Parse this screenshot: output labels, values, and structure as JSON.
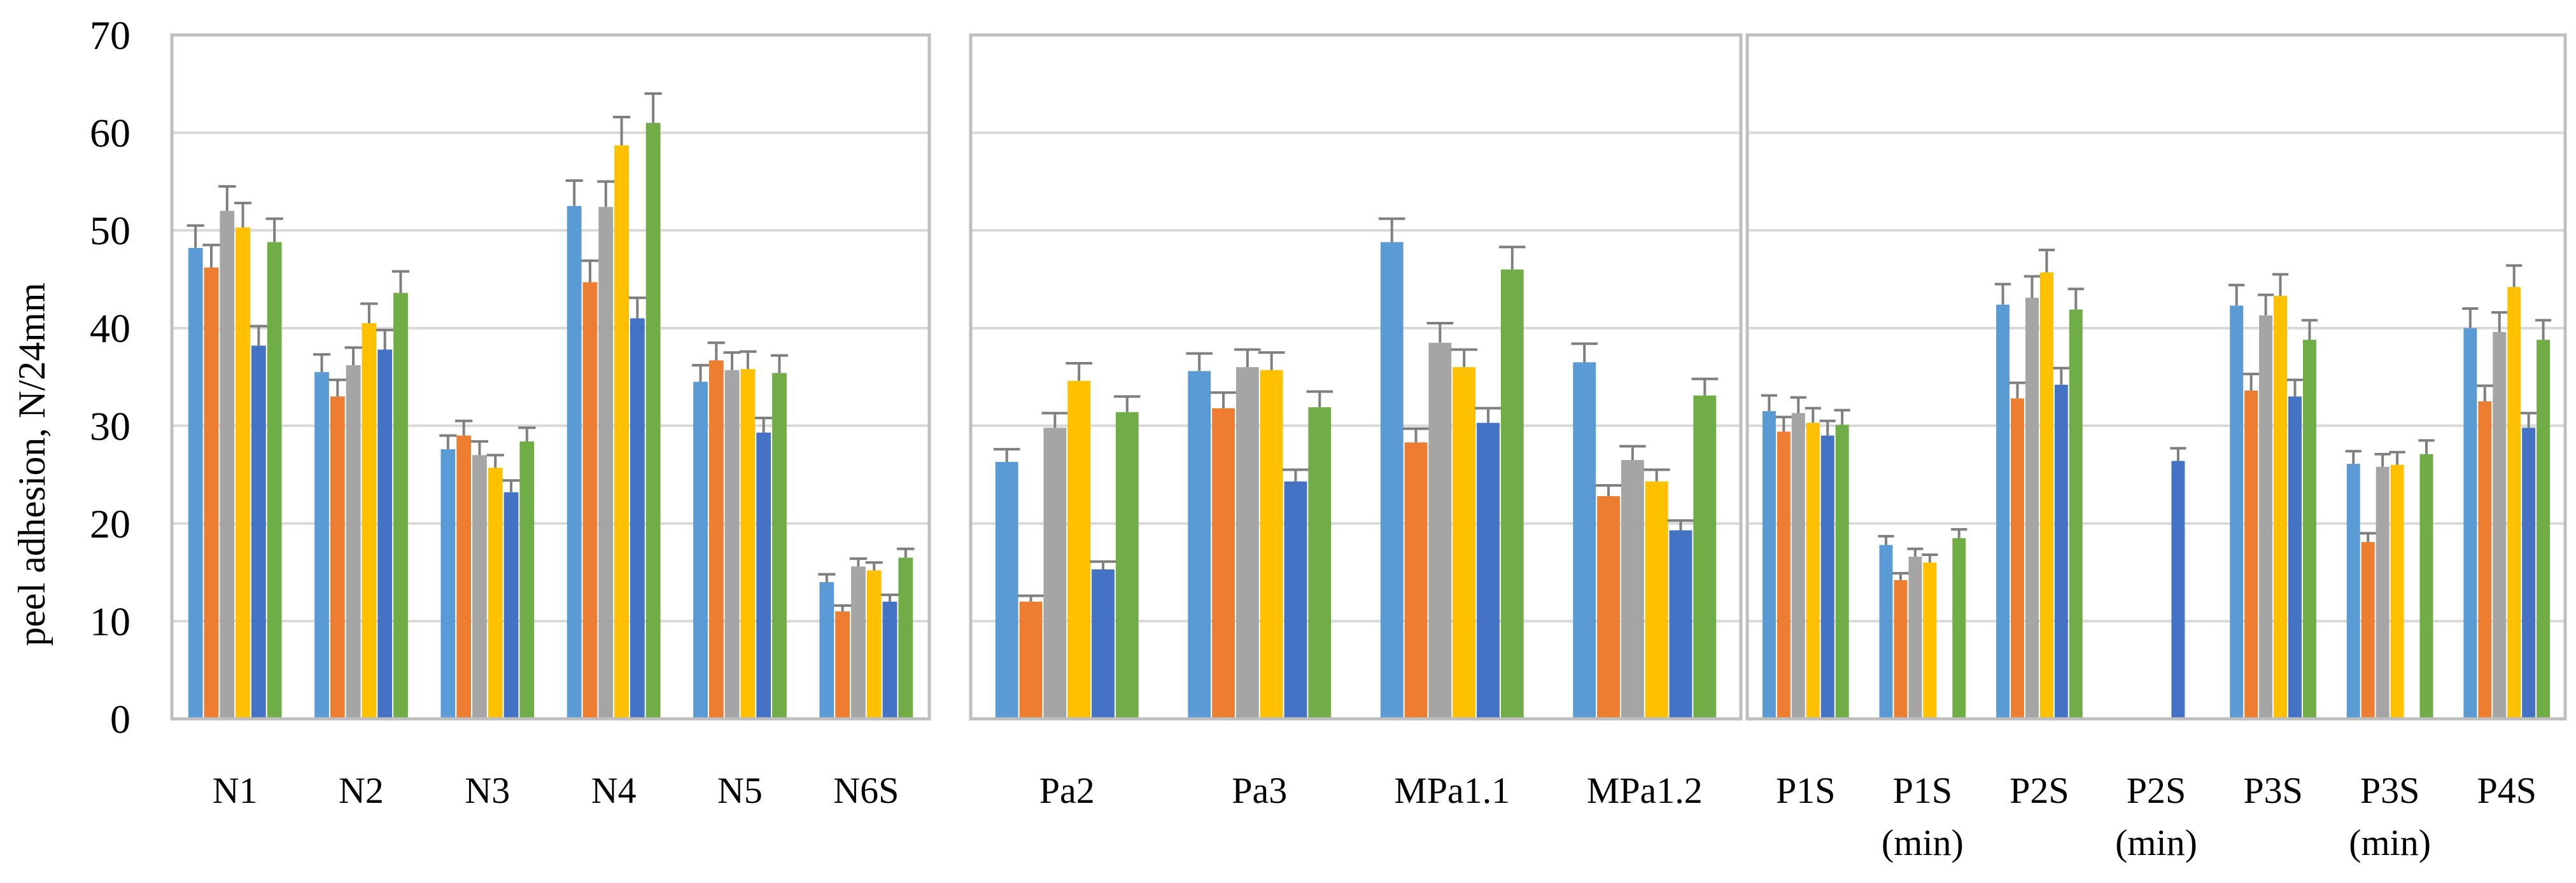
{
  "chart_data": {
    "type": "bar",
    "ylabel": "peel adhesion, N/24mm",
    "ylim": [
      0,
      70
    ],
    "yticks": [
      0,
      10,
      20,
      30,
      40,
      50,
      60,
      70
    ],
    "grid": true,
    "series_colors": [
      "#5b9bd5",
      "#ed7d31",
      "#a5a5a5",
      "#ffc000",
      "#4472c4",
      "#70ad47"
    ],
    "panels": [
      {
        "categories": [
          {
            "label": [
              "N1"
            ],
            "values": [
              48.2,
              46.2,
              52.0,
              50.3,
              38.2,
              48.8
            ],
            "errors": [
              2.3,
              2.3,
              2.5,
              2.5,
              2.0,
              2.4
            ]
          },
          {
            "label": [
              "N2"
            ],
            "values": [
              35.5,
              33.0,
              36.2,
              40.5,
              37.8,
              43.6
            ],
            "errors": [
              1.8,
              1.7,
              1.8,
              2.0,
              2.0,
              2.2
            ]
          },
          {
            "label": [
              "N3"
            ],
            "values": [
              27.6,
              29.0,
              27.0,
              25.7,
              23.2,
              28.4
            ],
            "errors": [
              1.4,
              1.5,
              1.4,
              1.3,
              1.2,
              1.4
            ]
          },
          {
            "label": [
              "N4"
            ],
            "values": [
              52.5,
              44.7,
              52.4,
              58.7,
              41.0,
              61.0
            ],
            "errors": [
              2.6,
              2.2,
              2.6,
              2.9,
              2.1,
              3.0
            ]
          },
          {
            "label": [
              "N5"
            ],
            "values": [
              34.5,
              36.7,
              35.7,
              35.8,
              29.3,
              35.4
            ],
            "errors": [
              1.7,
              1.8,
              1.8,
              1.8,
              1.5,
              1.8
            ]
          },
          {
            "label": [
              "N6S"
            ],
            "values": [
              14.0,
              11.0,
              15.6,
              15.2,
              12.0,
              16.5
            ],
            "errors": [
              0.8,
              0.6,
              0.8,
              0.8,
              0.7,
              0.9
            ]
          }
        ]
      },
      {
        "categories": [
          {
            "label": [
              "Pa2"
            ],
            "values": [
              26.3,
              12.0,
              29.8,
              34.6,
              15.3,
              31.4
            ],
            "errors": [
              1.3,
              0.6,
              1.5,
              1.8,
              0.8,
              1.6
            ]
          },
          {
            "label": [
              "Pa3"
            ],
            "values": [
              35.6,
              31.8,
              36.0,
              35.7,
              24.3,
              31.9
            ],
            "errors": [
              1.8,
              1.6,
              1.8,
              1.8,
              1.2,
              1.6
            ]
          },
          {
            "label": [
              "MPa1.1"
            ],
            "values": [
              48.8,
              28.3,
              38.5,
              36.0,
              30.3,
              46.0
            ],
            "errors": [
              2.4,
              1.4,
              2.0,
              1.8,
              1.5,
              2.3
            ]
          },
          {
            "label": [
              "MPa1.2"
            ],
            "values": [
              36.5,
              22.8,
              26.5,
              24.3,
              19.3,
              33.1
            ],
            "errors": [
              1.9,
              1.1,
              1.4,
              1.2,
              1.0,
              1.7
            ]
          }
        ]
      },
      {
        "categories": [
          {
            "label": [
              "P1S"
            ],
            "values": [
              31.5,
              29.4,
              31.3,
              30.3,
              29.0,
              30.1
            ],
            "errors": [
              1.6,
              1.5,
              1.6,
              1.5,
              1.5,
              1.5
            ]
          },
          {
            "label": [
              "P1S",
              "(min)"
            ],
            "values": [
              17.8,
              14.2,
              16.6,
              16.0,
              null,
              18.5
            ],
            "errors": [
              0.9,
              0.7,
              0.8,
              0.8,
              0,
              0.9
            ]
          },
          {
            "label": [
              "P2S"
            ],
            "values": [
              42.4,
              32.8,
              43.1,
              45.7,
              34.2,
              41.9
            ],
            "errors": [
              2.1,
              1.6,
              2.2,
              2.3,
              1.7,
              2.1
            ]
          },
          {
            "label": [
              "P2S",
              "(min)"
            ],
            "values": [
              null,
              null,
              null,
              null,
              26.4,
              null
            ],
            "errors": [
              0,
              0,
              0,
              0,
              1.3,
              0
            ]
          },
          {
            "label": [
              "P3S"
            ],
            "values": [
              42.3,
              33.6,
              41.3,
              43.3,
              33.0,
              38.8
            ],
            "errors": [
              2.1,
              1.7,
              2.1,
              2.2,
              1.7,
              2.0
            ]
          },
          {
            "label": [
              "P3S",
              "(min)"
            ],
            "values": [
              26.1,
              18.1,
              25.8,
              26.0,
              null,
              27.1
            ],
            "errors": [
              1.3,
              0.9,
              1.3,
              1.3,
              0,
              1.4
            ]
          },
          {
            "label": [
              "P4S"
            ],
            "values": [
              40.0,
              32.5,
              39.6,
              44.2,
              29.8,
              38.8
            ],
            "errors": [
              2.0,
              1.6,
              2.0,
              2.2,
              1.5,
              2.0
            ]
          }
        ]
      }
    ]
  }
}
